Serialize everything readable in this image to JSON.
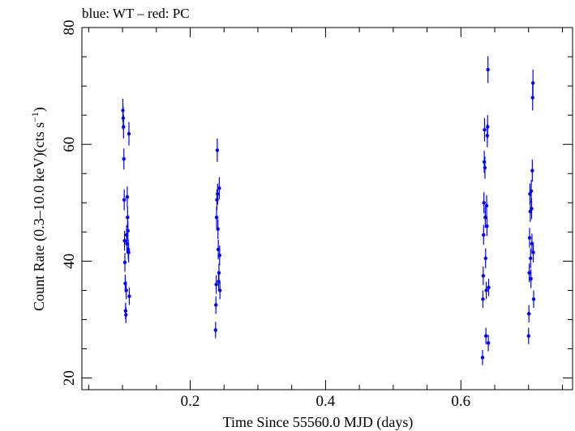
{
  "chart_data": {
    "type": "scatter",
    "title": "blue: WT – red: PC",
    "xlabel": "Time Since 55560.0 MJD (days)",
    "ylabel": "Count Rate (0.3–10.0 keV)(cts s",
    "ylabel_superscript": "−1",
    "ylabel_close": ")",
    "xlim": [
      0.04,
      0.765
    ],
    "ylim": [
      18,
      80
    ],
    "xticks": [
      0.2,
      0.4,
      0.6
    ],
    "xtick_labels": [
      "0.2",
      "0.4",
      "0.6"
    ],
    "yticks": [
      20,
      40,
      60,
      80
    ],
    "ytick_labels": [
      "20",
      "40",
      "60",
      "80"
    ],
    "grid": false,
    "series": [
      {
        "name": "WT",
        "color": "#0000ff",
        "x": [
          0.1005,
          0.101,
          0.1015,
          0.102,
          0.1025,
          0.103,
          0.1035,
          0.104,
          0.1045,
          0.105,
          0.1055,
          0.106,
          0.1065,
          0.107,
          0.1075,
          0.108,
          0.1085,
          0.109,
          0.1095,
          0.11,
          0.2375,
          0.238,
          0.2385,
          0.239,
          0.2395,
          0.24,
          0.2405,
          0.241,
          0.2415,
          0.242,
          0.2425,
          0.243,
          0.2435,
          0.244,
          0.632,
          0.6325,
          0.633,
          0.6335,
          0.634,
          0.6345,
          0.635,
          0.6355,
          0.636,
          0.6365,
          0.637,
          0.6375,
          0.638,
          0.6385,
          0.639,
          0.6395,
          0.64,
          0.6405,
          0.641,
          0.7,
          0.7005,
          0.701,
          0.7015,
          0.702,
          0.7025,
          0.703,
          0.7035,
          0.704,
          0.7045,
          0.705,
          0.7055,
          0.706,
          0.7065,
          0.707,
          0.7075
        ],
        "y": [
          65.8,
          64.5,
          63.0,
          57.5,
          50.5,
          43.5,
          39.8,
          36.2,
          31.5,
          30.8,
          35.0,
          44.5,
          43.0,
          51.0,
          47.5,
          45.2,
          42.0,
          41.5,
          61.8,
          34.0,
          28.2,
          32.5,
          36.0,
          47.5,
          50.5,
          59.0,
          51.5,
          45.5,
          42.0,
          36.5,
          38.0,
          52.5,
          41.0,
          35.0,
          23.5,
          33.5,
          37.5,
          44.5,
          50.0,
          57.0,
          62.5,
          56.0,
          47.5,
          40.5,
          27.2,
          35.0,
          49.5,
          46.0,
          61.5,
          63.0,
          72.8,
          26.0,
          35.5,
          27.2,
          31.0,
          38.0,
          44.0,
          51.5,
          48.5,
          40.5,
          37.0,
          52.0,
          49.0,
          43.0,
          55.5,
          68.0,
          70.5,
          41.5,
          33.5
        ],
        "err": [
          2.0,
          2.0,
          2.0,
          1.8,
          1.8,
          1.7,
          1.6,
          1.5,
          1.4,
          1.4,
          1.5,
          1.7,
          1.7,
          1.8,
          1.8,
          1.7,
          1.7,
          1.7,
          2.0,
          1.5,
          1.4,
          1.5,
          1.6,
          1.8,
          1.8,
          2.0,
          1.8,
          1.7,
          1.7,
          1.6,
          1.6,
          1.9,
          1.7,
          1.5,
          1.3,
          1.5,
          1.6,
          1.7,
          1.8,
          1.9,
          2.0,
          1.9,
          1.8,
          1.7,
          1.4,
          1.5,
          1.8,
          1.7,
          2.0,
          2.0,
          2.3,
          1.4,
          1.5,
          1.4,
          1.5,
          1.6,
          1.7,
          1.8,
          1.8,
          1.7,
          1.6,
          1.9,
          1.8,
          1.7,
          1.9,
          2.2,
          2.3,
          1.7,
          1.5
        ]
      }
    ]
  }
}
